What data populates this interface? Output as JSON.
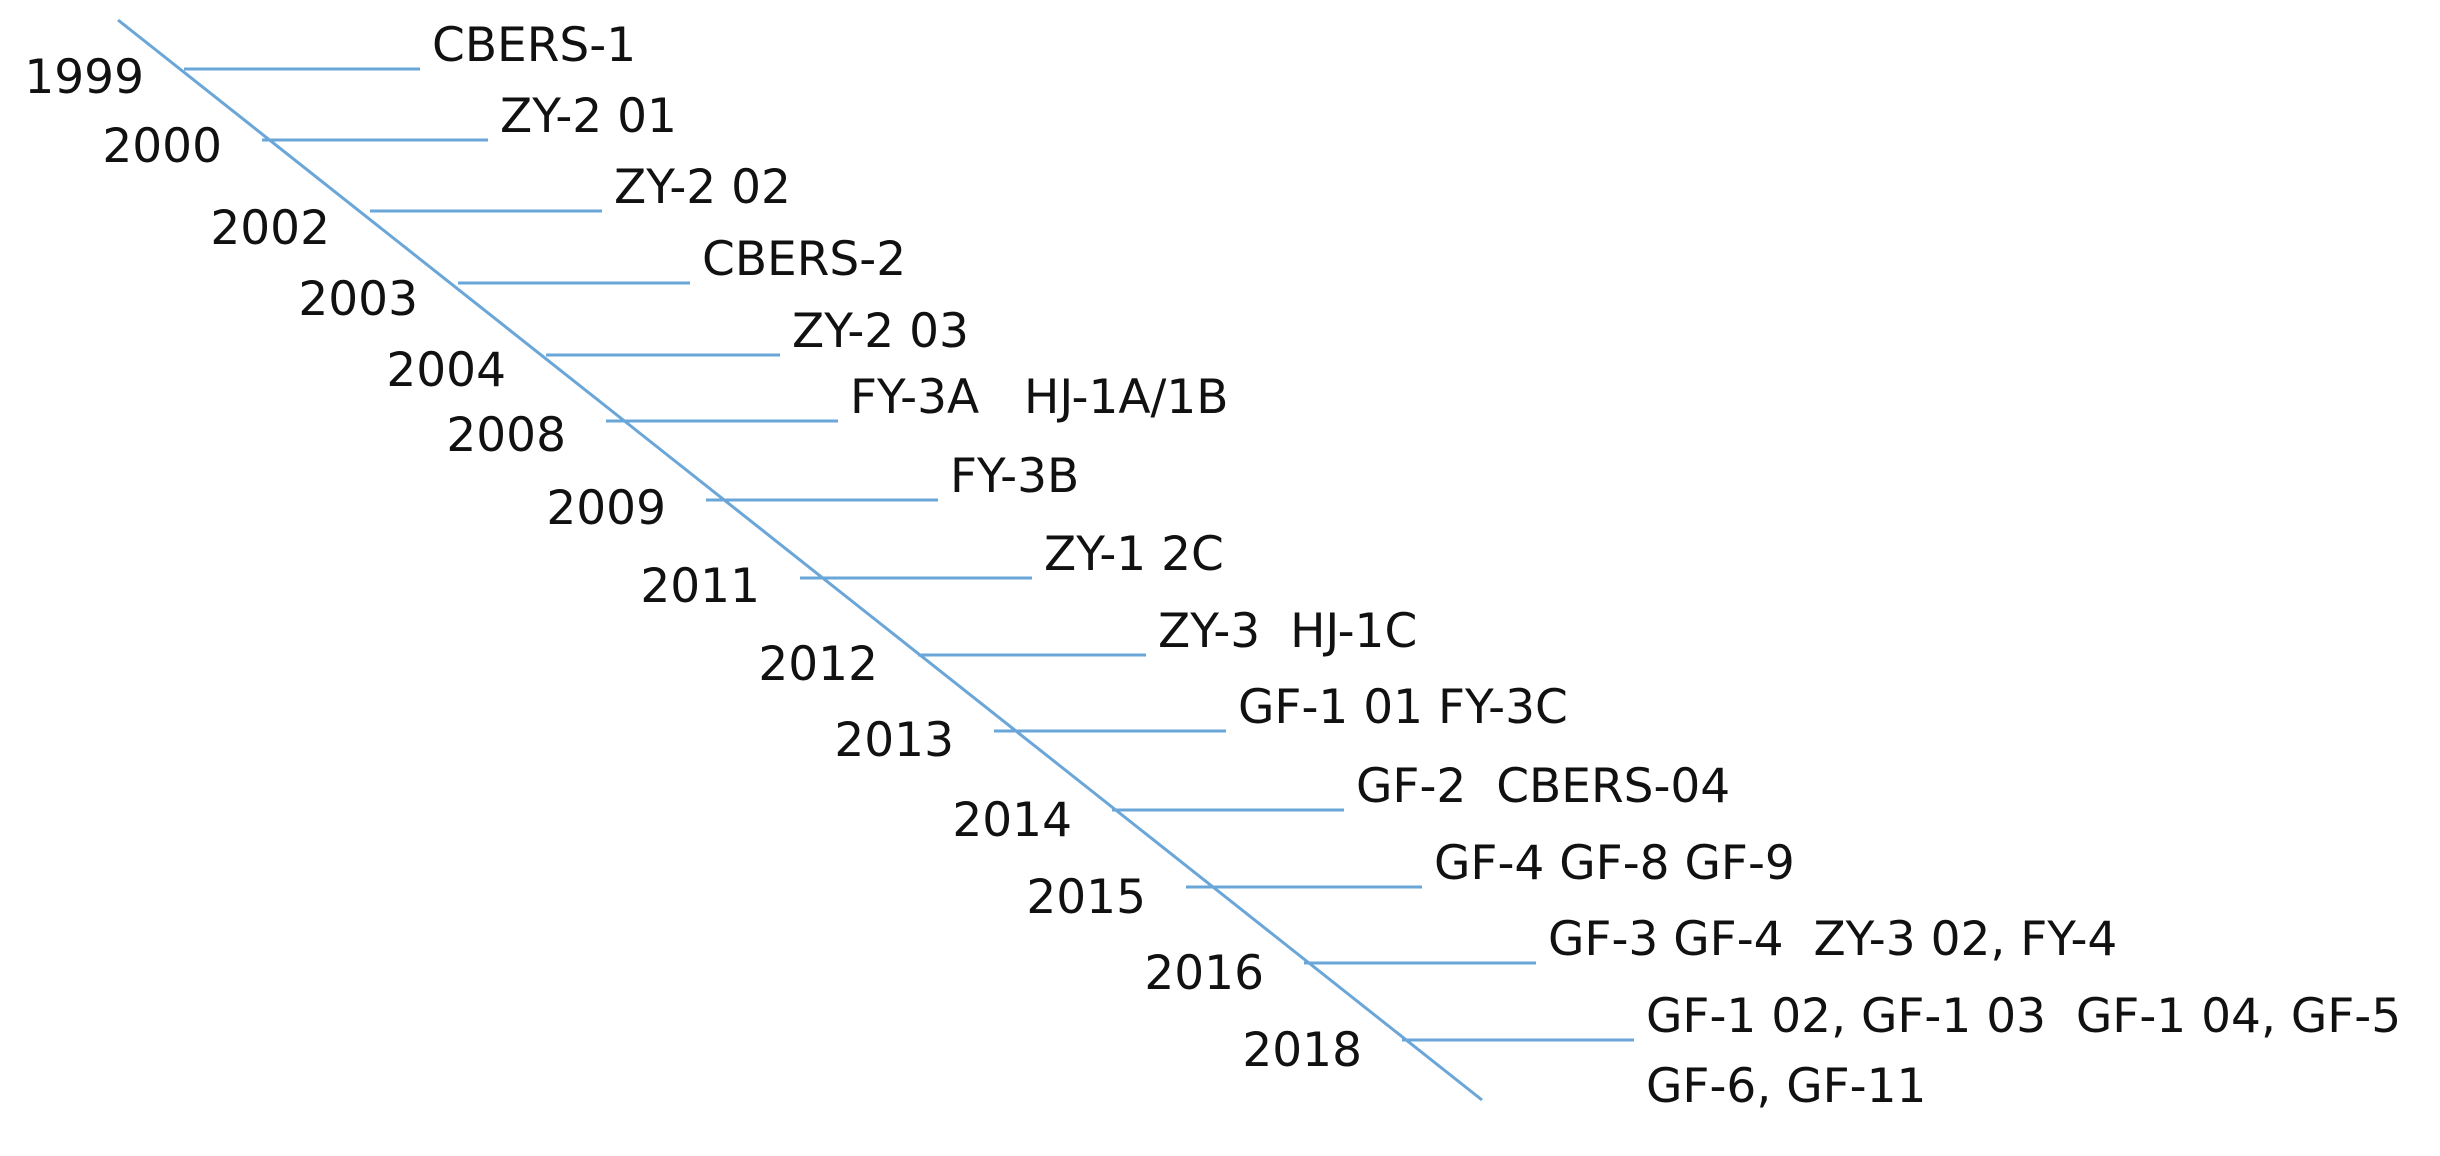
{
  "timeline": {
    "line_color": "#6aa6d8",
    "text_color": "#111111",
    "events": [
      {
        "year": "1999",
        "satellites": [
          "CBERS-1"
        ]
      },
      {
        "year": "2000",
        "satellites": [
          "ZY-2 01"
        ]
      },
      {
        "year": "2002",
        "satellites": [
          "ZY-2 02"
        ]
      },
      {
        "year": "2003",
        "satellites": [
          "CBERS-2"
        ]
      },
      {
        "year": "2004",
        "satellites": [
          "ZY-2 03"
        ]
      },
      {
        "year": "2008",
        "satellites": [
          "FY-3A   HJ-1A/1B"
        ]
      },
      {
        "year": "2009",
        "satellites": [
          "FY-3B"
        ]
      },
      {
        "year": "2011",
        "satellites": [
          "ZY-1 2C"
        ]
      },
      {
        "year": "2012",
        "satellites": [
          "ZY-3  HJ-1C"
        ]
      },
      {
        "year": "2013",
        "satellites": [
          "GF-1 01 FY-3C"
        ]
      },
      {
        "year": "2014",
        "satellites": [
          "GF-2  CBERS-04"
        ]
      },
      {
        "year": "2015",
        "satellites": [
          "GF-4 GF-8 GF-9"
        ]
      },
      {
        "year": "2016",
        "satellites": [
          "GF-3 GF-4  ZY-3 02, FY-4"
        ]
      },
      {
        "year": "2018",
        "satellites": [
          "GF-1 02, GF-1 03  GF-1 04, GF-5",
          "GF-6, GF-11"
        ]
      }
    ]
  }
}
